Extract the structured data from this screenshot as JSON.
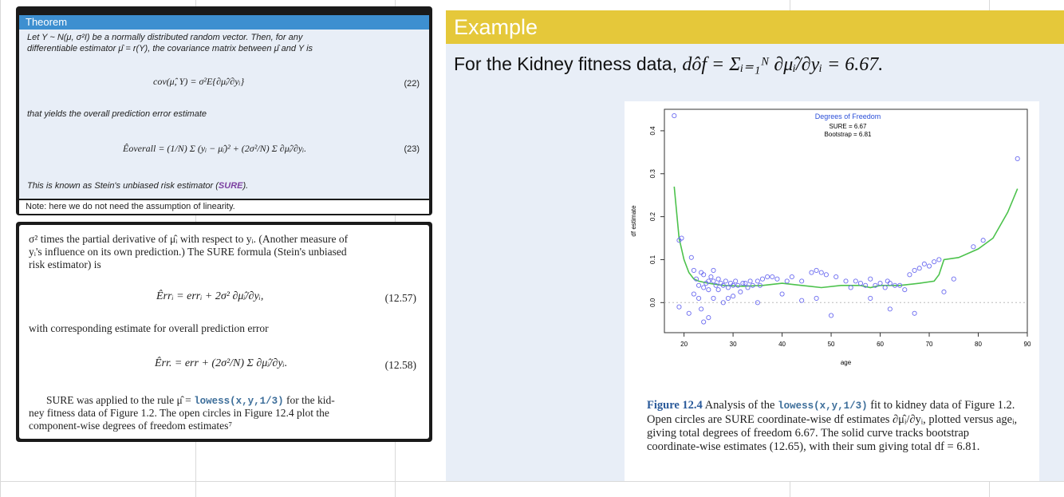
{
  "theorem": {
    "title": "Theorem",
    "line1": "Let Y ~ N(μ, σ²I) be a normally distributed random vector. Then, for any",
    "line2": "differentiable estimator μ̂ = r(Y), the covariance matrix between μ̂ and Y is",
    "eq22": "cov(μ̂, Y) = σ²E{∂μ̂ᵢ/∂yᵢ}",
    "eq22_no": "(22)",
    "line3": "that yields the overall prediction error estimate",
    "eq23": "Êoverall = (1/N) Σ (yᵢ − μ̂ᵢ)² + (2σ²/N) Σ ∂μ̂ᵢ/∂yᵢ.",
    "eq23_no": "(23)",
    "line4_pre": "This is known as Stein's unbiased risk estimator (",
    "line4_sure": "SURE",
    "line4_post": ").",
    "note": "Note: here we do not need the assumption of linearity."
  },
  "textbox": {
    "para1a": "σ² times the partial derivative of μ̂ᵢ with respect to yᵢ. (Another measure of",
    "para1b": "yᵢ's influence on its own prediction.) The SURE formula (Stein's unbiased",
    "para1c": "risk estimator) is",
    "eq1257": "Êrrᵢ = errᵢ + 2σ² ∂μ̂ᵢ/∂yᵢ,",
    "eq1257_no": "(12.57)",
    "para2": "with corresponding estimate for overall prediction error",
    "eq1258": "Êrr. = err + (2σ²/N) Σ ∂μ̂ᵢ/∂yᵢ.",
    "eq1258_no": "(12.58)",
    "para3a_pre": "SURE was applied to the rule μ̂ = ",
    "para3a_code": "lowess(x,y,1/3)",
    "para3a_post": " for the kid-",
    "para3b": "ney fitness data of Figure 1.2. The open circles in Figure 12.4 plot the",
    "para3c": "component-wise degrees of freedom estimates⁷"
  },
  "example": {
    "title": "Example",
    "text": "For the Kidney fitness data,",
    "formula": "dôf = Σᵢ₌₁ᴺ ∂μ̂ᵢ/∂yᵢ = 6.67."
  },
  "caption": {
    "fig": "Figure 12.4",
    "t1": " Analysis of the ",
    "code": "lowess(x,y,1/3)",
    "t2": " fit to kidney data of Figure 1.2. Open circles are SURE coordinate-wise df estimates ∂μ̂ᵢ/∂yᵢ, plotted versus ageᵢ, giving total degrees of freedom 6.67. The solid curve tracks bootstrap coordinate-wise estimates (12.65), with their sum giving total df = 6.81."
  },
  "colors": {
    "theorem_blue": "#3d8fd0",
    "example_yellow": "#e5c83a",
    "points": "#6b6bf0",
    "curve": "#4cc24c"
  },
  "chart_data": {
    "type": "scatter",
    "title": "Degrees of Freedom",
    "legend": [
      "SURE = 6.67",
      "Bootstrap = 6.81"
    ],
    "xlabel": "age",
    "ylabel": "df estimate",
    "xlim": [
      16,
      90
    ],
    "ylim": [
      -0.07,
      0.45
    ],
    "xticks": [
      20,
      30,
      40,
      50,
      60,
      70,
      80,
      90
    ],
    "yticks": [
      0.0,
      0.1,
      0.2,
      0.3,
      0.4
    ],
    "points": [
      [
        18,
        0.435
      ],
      [
        19,
        0.145
      ],
      [
        19.5,
        0.15
      ],
      [
        21.5,
        0.105
      ],
      [
        22,
        0.075
      ],
      [
        22,
        0.02
      ],
      [
        22.5,
        0.055
      ],
      [
        23,
        0.04
      ],
      [
        23,
        0.01
      ],
      [
        23.5,
        0.07
      ],
      [
        23.5,
        -0.015
      ],
      [
        24,
        0.035
      ],
      [
        24,
        0.065
      ],
      [
        24.5,
        0.045
      ],
      [
        25,
        0.05
      ],
      [
        25,
        0.03
      ],
      [
        25,
        -0.035
      ],
      [
        25.5,
        0.06
      ],
      [
        26,
        0.05
      ],
      [
        26,
        0.075
      ],
      [
        26,
        0.01
      ],
      [
        26.5,
        0.04
      ],
      [
        27,
        0.03
      ],
      [
        27,
        0.055
      ],
      [
        27.5,
        0.045
      ],
      [
        28,
        0.04
      ],
      [
        28,
        0.0
      ],
      [
        28.5,
        0.05
      ],
      [
        29,
        0.035
      ],
      [
        29.5,
        0.045
      ],
      [
        30,
        0.04
      ],
      [
        30,
        0.015
      ],
      [
        30.5,
        0.05
      ],
      [
        31,
        0.04
      ],
      [
        31.5,
        0.025
      ],
      [
        32,
        0.045
      ],
      [
        32.5,
        0.045
      ],
      [
        33,
        0.035
      ],
      [
        33.5,
        0.05
      ],
      [
        34,
        0.04
      ],
      [
        35,
        0.05
      ],
      [
        35.5,
        0.04
      ],
      [
        36,
        0.055
      ],
      [
        37,
        0.06
      ],
      [
        38,
        0.06
      ],
      [
        39,
        0.055
      ],
      [
        40,
        0.02
      ],
      [
        41,
        0.05
      ],
      [
        42,
        0.06
      ],
      [
        44,
        0.05
      ],
      [
        46,
        0.07
      ],
      [
        47,
        0.075
      ],
      [
        48,
        0.07
      ],
      [
        49,
        0.065
      ],
      [
        51,
        0.06
      ],
      [
        53,
        0.05
      ],
      [
        54,
        0.035
      ],
      [
        55,
        0.05
      ],
      [
        56,
        0.045
      ],
      [
        57,
        0.04
      ],
      [
        58,
        0.055
      ],
      [
        59,
        0.04
      ],
      [
        60,
        0.045
      ],
      [
        61,
        0.035
      ],
      [
        61.5,
        0.05
      ],
      [
        62,
        0.045
      ],
      [
        63,
        0.04
      ],
      [
        64,
        0.04
      ],
      [
        65,
        0.03
      ],
      [
        66,
        0.065
      ],
      [
        67,
        0.075
      ],
      [
        68,
        0.08
      ],
      [
        69,
        0.09
      ],
      [
        70,
        0.085
      ],
      [
        71,
        0.095
      ],
      [
        72,
        0.1
      ],
      [
        73,
        0.025
      ],
      [
        75,
        0.055
      ],
      [
        79,
        0.13
      ],
      [
        81,
        0.145
      ],
      [
        88,
        0.335
      ],
      [
        19,
        -0.01
      ],
      [
        21,
        -0.025
      ],
      [
        24,
        -0.045
      ],
      [
        29,
        0.01
      ],
      [
        35,
        0.0
      ],
      [
        44,
        0.005
      ],
      [
        47,
        0.01
      ],
      [
        50,
        -0.03
      ],
      [
        58,
        0.01
      ],
      [
        62,
        -0.015
      ],
      [
        67,
        -0.025
      ]
    ],
    "curve": [
      [
        18,
        0.27
      ],
      [
        19,
        0.15
      ],
      [
        20,
        0.1
      ],
      [
        21,
        0.07
      ],
      [
        22,
        0.055
      ],
      [
        23,
        0.05
      ],
      [
        25,
        0.045
      ],
      [
        28,
        0.04
      ],
      [
        32,
        0.038
      ],
      [
        36,
        0.04
      ],
      [
        40,
        0.045
      ],
      [
        44,
        0.04
      ],
      [
        48,
        0.035
      ],
      [
        52,
        0.04
      ],
      [
        56,
        0.04
      ],
      [
        58,
        0.035
      ],
      [
        60,
        0.04
      ],
      [
        64,
        0.04
      ],
      [
        68,
        0.045
      ],
      [
        71,
        0.05
      ],
      [
        72,
        0.065
      ],
      [
        73,
        0.1
      ],
      [
        76,
        0.105
      ],
      [
        80,
        0.125
      ],
      [
        83,
        0.15
      ],
      [
        86,
        0.21
      ],
      [
        88,
        0.265
      ]
    ]
  }
}
